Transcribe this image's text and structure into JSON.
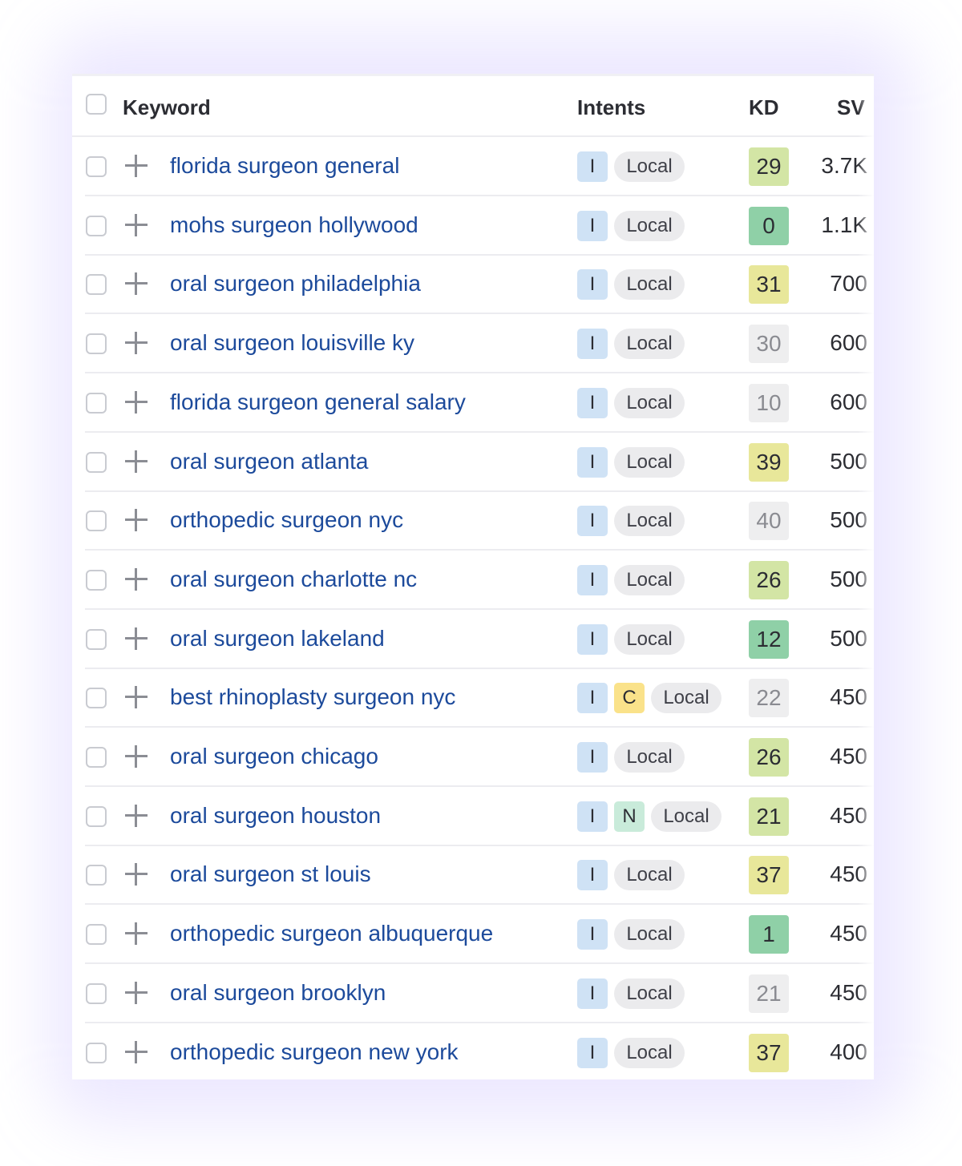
{
  "header": {
    "keyword": "Keyword",
    "intents": "Intents",
    "kd": "KD",
    "sv": "SV"
  },
  "rows": [
    {
      "keyword": "florida surgeon general",
      "intents": [
        "I"
      ],
      "local": "Local",
      "kd": "29",
      "kd_level": "lightgreen",
      "sv": "3.7K"
    },
    {
      "keyword": "mohs surgeon hollywood",
      "intents": [
        "I"
      ],
      "local": "Local",
      "kd": "0",
      "kd_level": "green",
      "sv": "1.1K"
    },
    {
      "keyword": "oral surgeon philadelphia",
      "intents": [
        "I"
      ],
      "local": "Local",
      "kd": "31",
      "kd_level": "yellow",
      "sv": "700"
    },
    {
      "keyword": "oral surgeon louisville ky",
      "intents": [
        "I"
      ],
      "local": "Local",
      "kd": "30",
      "kd_level": "gray",
      "sv": "600"
    },
    {
      "keyword": "florida surgeon general salary",
      "intents": [
        "I"
      ],
      "local": "Local",
      "kd": "10",
      "kd_level": "gray",
      "sv": "600"
    },
    {
      "keyword": "oral surgeon atlanta",
      "intents": [
        "I"
      ],
      "local": "Local",
      "kd": "39",
      "kd_level": "yellow",
      "sv": "500"
    },
    {
      "keyword": "orthopedic surgeon nyc",
      "intents": [
        "I"
      ],
      "local": "Local",
      "kd": "40",
      "kd_level": "gray",
      "sv": "500"
    },
    {
      "keyword": "oral surgeon charlotte nc",
      "intents": [
        "I"
      ],
      "local": "Local",
      "kd": "26",
      "kd_level": "lightgreen",
      "sv": "500"
    },
    {
      "keyword": "oral surgeon lakeland",
      "intents": [
        "I"
      ],
      "local": "Local",
      "kd": "12",
      "kd_level": "green",
      "sv": "500"
    },
    {
      "keyword": "best rhinoplasty surgeon nyc",
      "intents": [
        "I",
        "C"
      ],
      "local": "Local",
      "kd": "22",
      "kd_level": "gray",
      "sv": "450"
    },
    {
      "keyword": "oral surgeon chicago",
      "intents": [
        "I"
      ],
      "local": "Local",
      "kd": "26",
      "kd_level": "lightgreen",
      "sv": "450"
    },
    {
      "keyword": "oral surgeon houston",
      "intents": [
        "I",
        "N"
      ],
      "local": "Local",
      "kd": "21",
      "kd_level": "lightgreen",
      "sv": "450"
    },
    {
      "keyword": "oral surgeon st louis",
      "intents": [
        "I"
      ],
      "local": "Local",
      "kd": "37",
      "kd_level": "yellow",
      "sv": "450"
    },
    {
      "keyword": "orthopedic surgeon albuquerque",
      "intents": [
        "I"
      ],
      "local": "Local",
      "kd": "1",
      "kd_level": "green",
      "sv": "450"
    },
    {
      "keyword": "oral surgeon brooklyn",
      "intents": [
        "I"
      ],
      "local": "Local",
      "kd": "21",
      "kd_level": "gray",
      "sv": "450"
    },
    {
      "keyword": "orthopedic surgeon new york",
      "intents": [
        "I"
      ],
      "local": "Local",
      "kd": "37",
      "kd_level": "yellow",
      "sv": "400"
    }
  ]
}
